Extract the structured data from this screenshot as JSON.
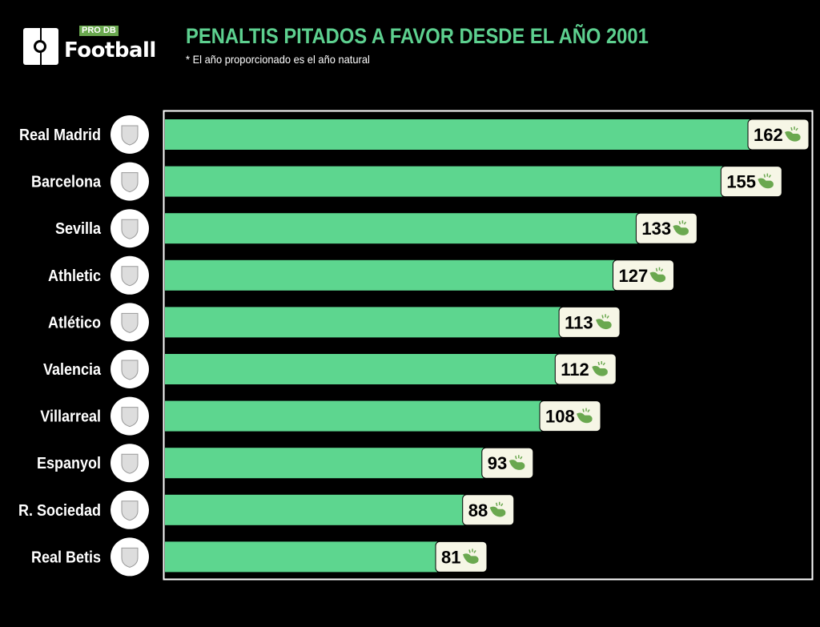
{
  "brand": {
    "pro": "PRO",
    "db": "DB",
    "name": "Football"
  },
  "colors": {
    "bar": "#5dd68f",
    "title": "#5dd08f",
    "label_bg": "#f6f6e6",
    "whistle": "#6aa84f"
  },
  "chart_data": {
    "type": "bar",
    "orientation": "horizontal",
    "title": "PENALTIS PITADOS A FAVOR DESDE EL AÑO 2001",
    "subtitle": "* El año proporcionado es el año natural",
    "xlabel": "",
    "ylabel": "",
    "categories": [
      "Real Madrid",
      "Barcelona",
      "Sevilla",
      "Athletic",
      "Atlético",
      "Valencia",
      "Villarreal",
      "Espanyol",
      "R. Sociedad",
      "Real Betis"
    ],
    "values": [
      162,
      155,
      133,
      127,
      113,
      112,
      108,
      93,
      88,
      81
    ],
    "grid": false
  }
}
